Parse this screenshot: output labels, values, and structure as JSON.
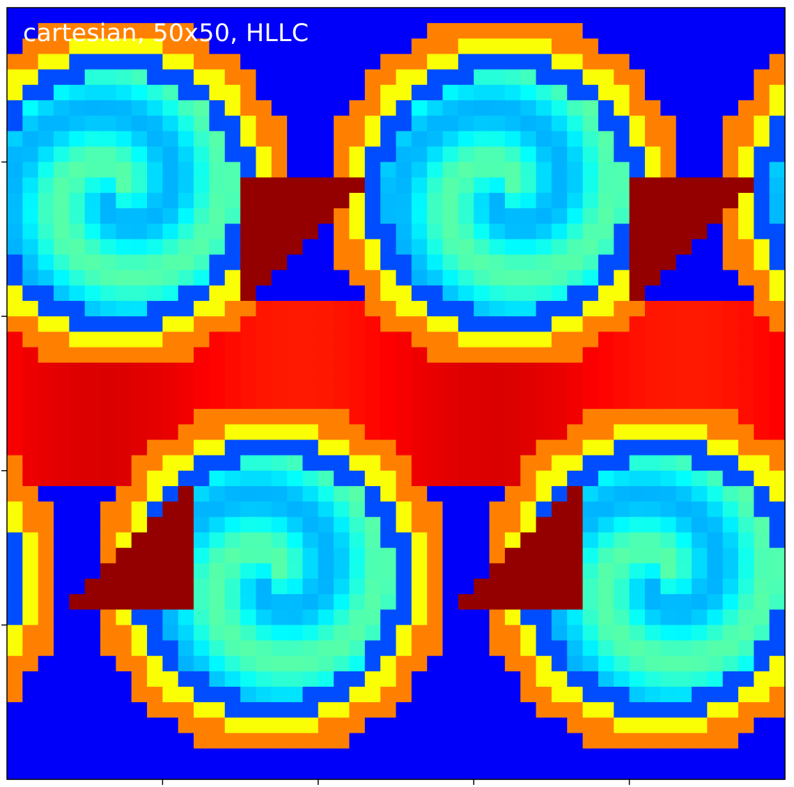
{
  "chart_data": {
    "type": "heatmap",
    "annotation": "cartesian, 50x50, HLLC",
    "colormap": "jet",
    "grid_size": [
      50,
      50
    ],
    "value_range": [
      0,
      1
    ],
    "grid": false,
    "x_ticks_labelled": false,
    "y_ticks_labelled": false,
    "title": "",
    "xlabel": "",
    "ylabel": ""
  }
}
